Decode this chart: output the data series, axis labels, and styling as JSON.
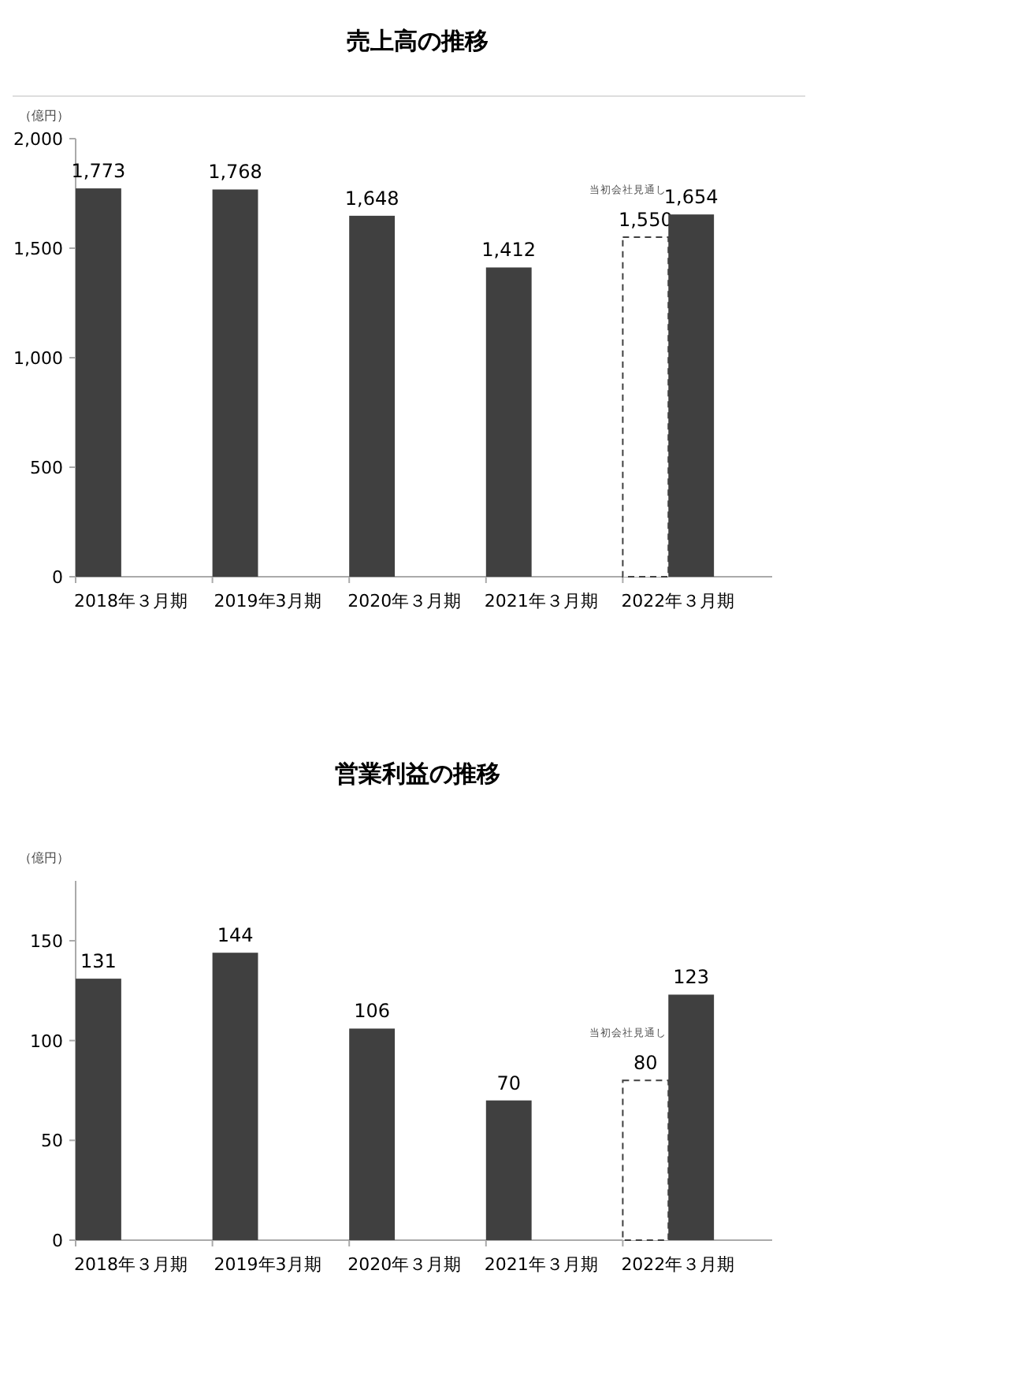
{
  "chart_data": [
    {
      "type": "bar",
      "title": "売上高の推移",
      "ylabel": "（億円）",
      "categories": [
        "2018年３月期",
        "2019年3月期",
        "2020年３月期",
        "2021年３月期",
        "2022年３月期"
      ],
      "series": [
        {
          "color": "#ffffff",
          "line_style": "dashed",
          "values": [
            null,
            null,
            null,
            null,
            1550
          ],
          "value_labels": [
            null,
            null,
            null,
            null,
            "1,550"
          ]
        },
        {
          "color": "#404040",
          "values": [
            1773,
            1768,
            1648,
            1412,
            1654
          ],
          "value_labels": [
            "1,773",
            "1,768",
            "1,648",
            "1,412",
            "1,654"
          ]
        }
      ],
      "ylim": [
        0,
        2000
      ],
      "yticks": [
        0,
        500,
        {
          "value": 1000,
          "label": "1,000"
        },
        {
          "value": 1500,
          "label": "1,500"
        },
        {
          "value": 2000,
          "label": "2,000"
        }
      ],
      "annotations": [
        "当初会社見通し"
      ],
      "grid": false
    },
    {
      "type": "bar",
      "title": "営業利益の推移",
      "ylabel": "（億円）",
      "categories": [
        "2018年３月期",
        "2019年3月期",
        "2020年３月期",
        "2021年３月期",
        "2022年３月期"
      ],
      "series": [
        {
          "color": "#ffffff",
          "line_style": "dashed",
          "values": [
            null,
            null,
            null,
            null,
            80
          ],
          "value_labels": [
            null,
            null,
            null,
            null,
            "80"
          ]
        },
        {
          "color": "#404040",
          "values": [
            131,
            144,
            106,
            70,
            123
          ],
          "value_labels": [
            "131",
            "144",
            "106",
            "70",
            "123"
          ]
        }
      ],
      "ylim": [
        0,
        180
      ],
      "yticks": [
        0,
        50,
        100,
        150
      ],
      "annotations": [
        "当初会社見通し"
      ],
      "grid": false
    }
  ]
}
